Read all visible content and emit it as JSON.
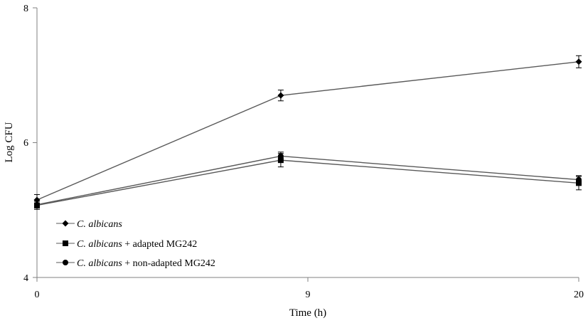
{
  "chart_data": {
    "type": "line",
    "title": "",
    "xlabel": "Time (h)",
    "ylabel": "Log CFU",
    "x": [
      0,
      9,
      20
    ],
    "x_ticks": [
      "0",
      "9",
      "20"
    ],
    "y_ticks": [
      "4",
      "6",
      "8"
    ],
    "xlim": [
      0,
      20
    ],
    "ylim": [
      4,
      8
    ],
    "grid": false,
    "legend_position": "bottom-left",
    "series": [
      {
        "name_italic": "C. albicans",
        "name_suffix": "",
        "marker": "diamond",
        "color": "#595959",
        "values": [
          5.15,
          6.7,
          7.2
        ],
        "errors": [
          0.08,
          0.08,
          0.09
        ]
      },
      {
        "name_italic": "C. albicans",
        "name_suffix": " + adapted MG242",
        "marker": "square",
        "color": "#595959",
        "values": [
          5.07,
          5.74,
          5.4
        ],
        "errors": [
          0.06,
          0.1,
          0.1
        ]
      },
      {
        "name_italic": "C. albicans",
        "name_suffix": " + non-adapted MG242",
        "marker": "circle",
        "color": "#595959",
        "values": [
          5.08,
          5.8,
          5.45
        ],
        "errors": [
          0.05,
          0.06,
          0.06
        ]
      }
    ]
  }
}
